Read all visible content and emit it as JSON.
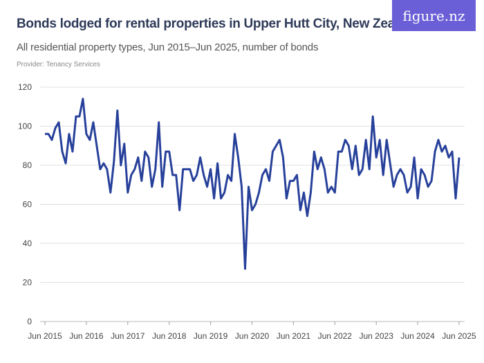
{
  "header": {
    "title": "Bonds lodged for rental properties in Upper Hutt City, New Zealand",
    "subtitle": "All residential property types, Jun 2015–Jun 2025, number of bonds",
    "provider": "Provider: Tenancy Services",
    "logo": "figure.nz"
  },
  "colors": {
    "line": "#27409a",
    "grid": "#e0e0e0",
    "logo_bg": "#6a5fd6"
  },
  "chart_data": {
    "type": "line",
    "title": "Bonds lodged for rental properties in Upper Hutt City, New Zealand",
    "xlabel": "",
    "ylabel": "",
    "ylim": [
      0,
      120
    ],
    "yticks": [
      0,
      20,
      40,
      60,
      80,
      100,
      120
    ],
    "xticks": [
      "Jun 2015",
      "Jun 2016",
      "Jun 2017",
      "Jun 2018",
      "Jun 2019",
      "Jun 2020",
      "Jun 2021",
      "Jun 2022",
      "Jun 2023",
      "Jun 2024",
      "Jun 2025"
    ],
    "x_start": "Jun 2015",
    "x_end": "Jun 2025",
    "frequency": "monthly",
    "grid": true,
    "values": [
      96,
      96,
      93,
      99,
      102,
      87,
      81,
      96,
      87,
      105,
      105,
      114,
      96,
      93,
      102,
      90,
      78,
      81,
      78,
      66,
      82,
      108,
      80,
      91,
      66,
      75,
      78,
      84,
      72,
      87,
      84,
      69,
      78,
      102,
      69,
      87,
      87,
      75,
      75,
      57,
      78,
      78,
      78,
      72,
      75,
      84,
      75,
      69,
      78,
      63,
      81,
      63,
      66,
      75,
      72,
      96,
      84,
      69,
      27,
      69,
      57,
      60,
      66,
      75,
      78,
      72,
      87,
      90,
      93,
      84,
      63,
      72,
      72,
      75,
      57,
      66,
      54,
      66,
      87,
      78,
      84,
      78,
      66,
      69,
      66,
      87,
      87,
      93,
      90,
      78,
      90,
      75,
      78,
      93,
      78,
      105,
      84,
      93,
      75,
      93,
      81,
      69,
      75,
      78,
      75,
      66,
      69,
      84,
      63,
      78,
      75,
      69,
      72,
      87,
      93,
      87,
      90,
      84,
      87,
      63,
      84
    ]
  }
}
